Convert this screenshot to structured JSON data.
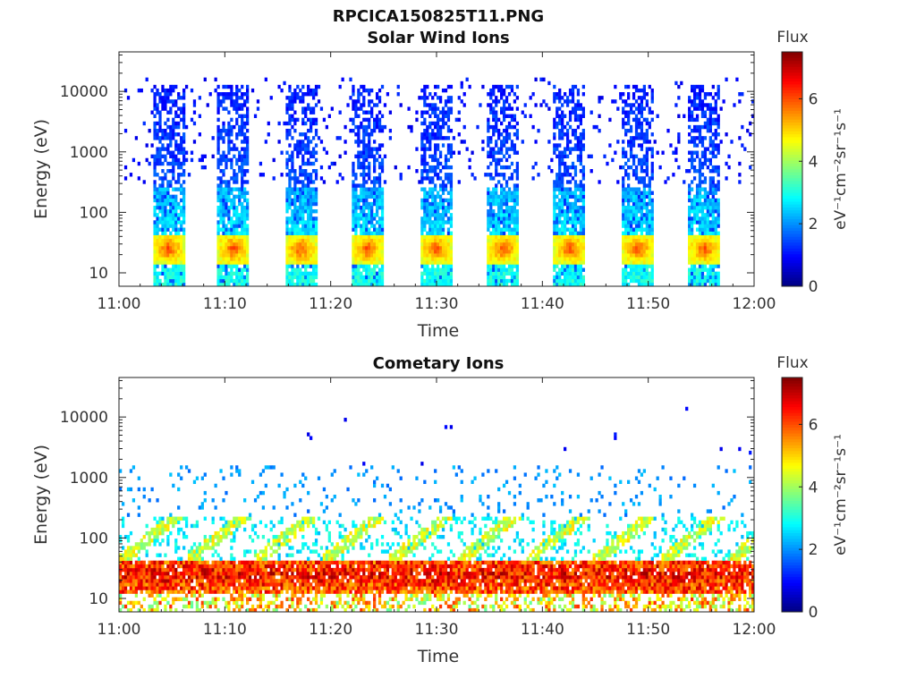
{
  "figure": {
    "title": "RPCICA150825T11.PNG"
  },
  "chart_data": [
    {
      "type": "heatmap",
      "title": "Solar Wind Ions",
      "xlabel": "Time",
      "ylabel": "Energy (eV)",
      "y_scale": "log",
      "x_range": [
        "11:00",
        "12:00"
      ],
      "x_ticks": [
        "11:00",
        "11:10",
        "11:20",
        "11:30",
        "11:40",
        "11:50",
        "12:00"
      ],
      "y_ticks": [
        "10",
        "100",
        "1000",
        "10000"
      ],
      "colorbar": {
        "title": "Flux",
        "label": "eV⁻¹cm⁻²sr⁻¹s⁻¹",
        "ticks": [
          "0",
          "2",
          "4",
          "6"
        ],
        "range": [
          0,
          7.5
        ],
        "colormap": "jet"
      },
      "scan_center_minutes": [
        4.7,
        10.8,
        17.2,
        23.5,
        29.9,
        36.3,
        42.6,
        49.0,
        55.3
      ],
      "peak_energy_eV": 25
    },
    {
      "type": "heatmap",
      "title": "Cometary Ions",
      "xlabel": "Time",
      "ylabel": "Energy (eV)",
      "y_scale": "log",
      "x_range": [
        "11:00",
        "12:00"
      ],
      "x_ticks": [
        "11:00",
        "11:10",
        "11:20",
        "11:30",
        "11:40",
        "11:50",
        "12:00"
      ],
      "y_ticks": [
        "10",
        "100",
        "1000",
        "10000"
      ],
      "colorbar": {
        "title": "Flux",
        "label": "eV⁻¹cm⁻²sr⁻¹s⁻¹",
        "ticks": [
          "0",
          "2",
          "4",
          "6"
        ],
        "range": [
          0,
          7.5
        ],
        "colormap": "jet"
      },
      "peak_energy_range_eV": [
        12,
        40
      ]
    }
  ]
}
